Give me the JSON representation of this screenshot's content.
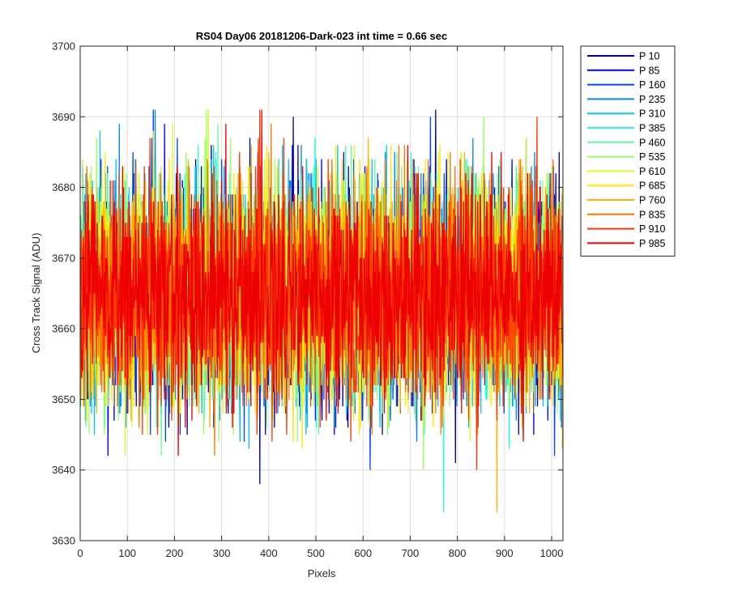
{
  "chart_data": {
    "type": "line",
    "title": "RS04 Day06 20181206-Dark-023 int time = 0.66 sec",
    "xlabel": "Pixels",
    "ylabel": "Cross Track Signal (ADU)",
    "xlim": [
      0,
      1024
    ],
    "ylim": [
      3630,
      3700
    ],
    "xticks": [
      0,
      100,
      200,
      300,
      400,
      500,
      600,
      700,
      800,
      900,
      1000
    ],
    "yticks": [
      3630,
      3640,
      3650,
      3660,
      3670,
      3680,
      3690,
      3700
    ],
    "grid": true,
    "legend_position": "outside-top-right",
    "n_pixels": 1024,
    "series_mean_approx": 3665,
    "series_range_approx": [
      3634,
      3691
    ],
    "series": [
      {
        "name": "P 10",
        "color": "#0000a8"
      },
      {
        "name": "P 85",
        "color": "#0000ef"
      },
      {
        "name": "P 160",
        "color": "#0044ff"
      },
      {
        "name": "P 235",
        "color": "#0088ff"
      },
      {
        "name": "P 310",
        "color": "#00c4ff"
      },
      {
        "name": "P 385",
        "color": "#20ffe0"
      },
      {
        "name": "P 460",
        "color": "#5cffa0"
      },
      {
        "name": "P 535",
        "color": "#9cff60"
      },
      {
        "name": "P 610",
        "color": "#d8ff24"
      },
      {
        "name": "P 685",
        "color": "#ffe800"
      },
      {
        "name": "P 760",
        "color": "#ffb000"
      },
      {
        "name": "P 835",
        "color": "#ff7400"
      },
      {
        "name": "P 910",
        "color": "#ff3800"
      },
      {
        "name": "P 985",
        "color": "#ee0000"
      }
    ]
  }
}
